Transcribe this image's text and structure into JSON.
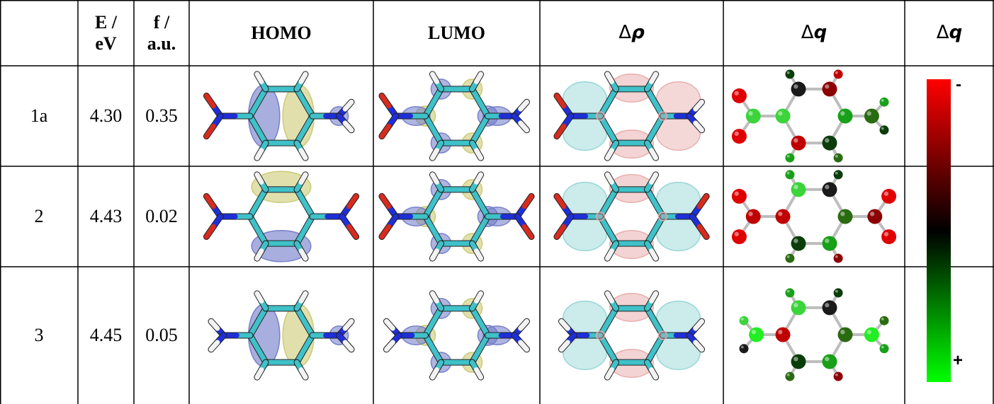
{
  "table": {
    "headers": {
      "label": "",
      "energy": [
        "E /",
        "eV"
      ],
      "osc": [
        "f /",
        "a.u."
      ],
      "homo": "HOMO",
      "lumo": "LUMO",
      "drho_symbol": "Δ",
      "drho_var": "ρ",
      "dq_symbol": "Δ",
      "dq_var": "q",
      "scale_symbol": "Δ",
      "scale_var": "q"
    },
    "rows": [
      {
        "id": "1a",
        "energy": "4.30",
        "osc": "0.35"
      },
      {
        "id": "2",
        "energy": "4.43",
        "osc": "0.02"
      },
      {
        "id": "3",
        "energy": "4.45",
        "osc": "0.05"
      }
    ]
  },
  "scale": {
    "top_sign": "-",
    "bottom_sign": "+",
    "colors": [
      "#ff0000",
      "#000000",
      "#00ff00"
    ]
  },
  "colors": {
    "carbon": "#3fc1c9",
    "nitrogen": "#1f2fd8",
    "oxygen": "#d62b1f",
    "hydrogen": "#f2f2f2",
    "lobe_yellow": "#c8c66a",
    "lobe_blue": "#6e78c8",
    "lobe_pink": "#e7a8a8",
    "lobe_cyan": "#8fd3d3"
  }
}
